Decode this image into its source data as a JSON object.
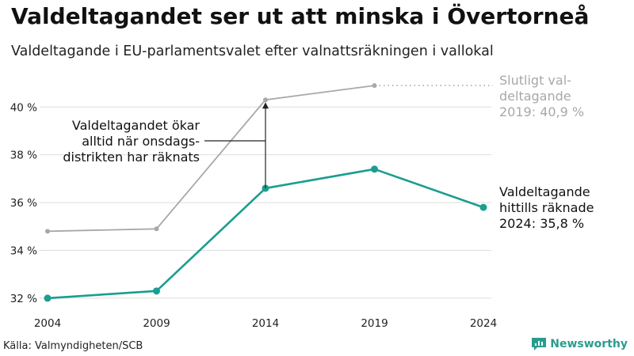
{
  "title": "Valdeltagandet ser ut att minska i Övertorneå",
  "subtitle": "Valdeltagande i EU-parlamentsvalet efter valnattsräkningen i vallokal",
  "source": "Källa: Valmyndigheten/SCB",
  "brand": "Newsworthy",
  "colors": {
    "counted": "#1a9e8f",
    "final": "#a8a8a8",
    "grid": "#dedede",
    "annotation": "#222222"
  },
  "chart_data": {
    "type": "line",
    "x": [
      "2004",
      "2009",
      "2014",
      "2019",
      "2024"
    ],
    "ylim": [
      31.5,
      41.3
    ],
    "yticks": [
      32,
      34,
      36,
      38,
      40
    ],
    "ytick_labels": [
      "32 %",
      "34 %",
      "36 %",
      "38 %",
      "40 %"
    ],
    "series": [
      {
        "key": "counted",
        "values": [
          32.0,
          32.3,
          36.6,
          37.4,
          35.8
        ]
      },
      {
        "key": "final",
        "values": [
          34.8,
          34.9,
          40.3,
          40.9,
          null
        ]
      }
    ],
    "annotations": {
      "final_label": [
        "Slutligt val-",
        "deltagande",
        "2019: 40,9 %"
      ],
      "counted_label": [
        "Valdeltagande",
        "hittills räknade",
        "2024: 35,8 %"
      ],
      "note_label": [
        "Valdeltagandet ökar",
        "alltid när onsdags-",
        "distrikten har räknats"
      ]
    }
  }
}
